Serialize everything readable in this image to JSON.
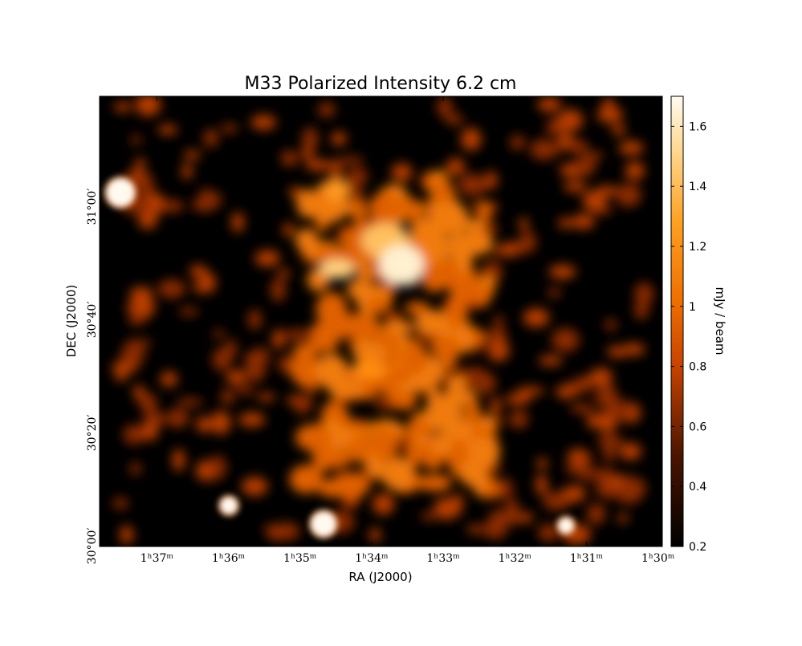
{
  "chart_data": {
    "type": "image",
    "title": "M33 Polarized Intensity 6.2 cm",
    "xlabel": "RA (J2000)",
    "ylabel": "DEC (J2000)",
    "xlim": [
      97.8,
      89.94
    ],
    "xticks": [
      {
        "value": 97,
        "label": "1ʰ37ᵐ"
      },
      {
        "value": 96,
        "label": "1ʰ36ᵐ"
      },
      {
        "value": 95,
        "label": "1ʰ35ᵐ"
      },
      {
        "value": 94,
        "label": "1ʰ34ᵐ"
      },
      {
        "value": 93,
        "label": "1ʰ33ᵐ"
      },
      {
        "value": 92,
        "label": "1ʰ32ᵐ"
      },
      {
        "value": 91,
        "label": "1ʰ31ᵐ"
      },
      {
        "value": 90,
        "label": "1ʰ30ᵐ"
      }
    ],
    "ylim": [
      1799.9,
      1879.5
    ],
    "yticks": [
      {
        "value": 1800,
        "label": "30°00′"
      },
      {
        "value": 1820,
        "label": "30°20′"
      },
      {
        "value": 1840,
        "label": "30°40′"
      },
      {
        "value": 1860,
        "label": "31°00′"
      }
    ],
    "colorbar": {
      "label": "mJy / beam",
      "clim": [
        0.2,
        1.7
      ],
      "ticks": [
        0.2,
        0.4,
        0.6,
        0.8,
        1.0,
        1.2,
        1.4,
        1.6
      ]
    }
  }
}
